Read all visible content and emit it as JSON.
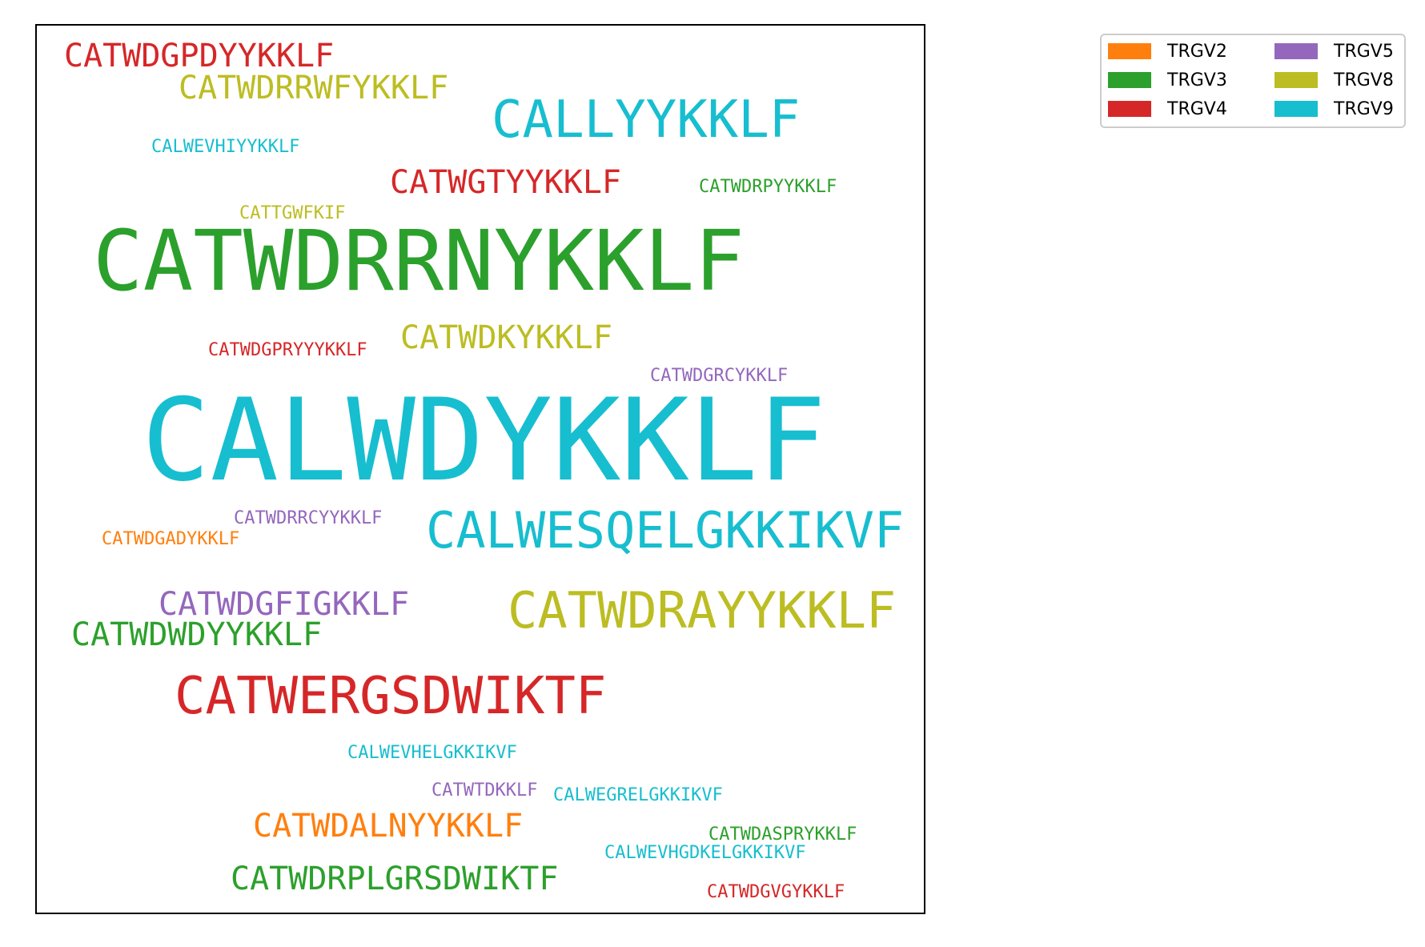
{
  "chart_data": {
    "type": "wordcloud",
    "legend_position": "top-right",
    "legend": [
      {
        "name": "TRGV2",
        "color": "#ff7f0e"
      },
      {
        "name": "TRGV5",
        "color": "#9467bd"
      },
      {
        "name": "TRGV3",
        "color": "#2ca02c"
      },
      {
        "name": "TRGV8",
        "color": "#bcbd22"
      },
      {
        "name": "TRGV4",
        "color": "#d62728"
      },
      {
        "name": "TRGV9",
        "color": "#17becf"
      }
    ],
    "words": [
      {
        "text": "CATWDGPDYYKKLF",
        "group": "TRGV4",
        "color": "#d62728"
      },
      {
        "text": "CATWDRRWFYKKLF",
        "group": "TRGV8",
        "color": "#bcbd22"
      },
      {
        "text": "CALLYYKKLF",
        "group": "TRGV9",
        "color": "#17becf"
      },
      {
        "text": "CALWEVHIYYKKLF",
        "group": "TRGV9",
        "color": "#17becf"
      },
      {
        "text": "CATWGTYYKKLF",
        "group": "TRGV4",
        "color": "#d62728"
      },
      {
        "text": "CATWDRPYYKKLF",
        "group": "TRGV3",
        "color": "#2ca02c"
      },
      {
        "text": "CATTGWFKIF",
        "group": "TRGV8",
        "color": "#bcbd22"
      },
      {
        "text": "CATWDRRNYKKLF",
        "group": "TRGV3",
        "color": "#2ca02c"
      },
      {
        "text": "CATWDKYKKLF",
        "group": "TRGV8",
        "color": "#bcbd22"
      },
      {
        "text": "CATWDGPRYYYKKLF",
        "group": "TRGV4",
        "color": "#d62728"
      },
      {
        "text": "CATWDGRCYKKLF",
        "group": "TRGV5",
        "color": "#9467bd"
      },
      {
        "text": "CALWDYKKLF",
        "group": "TRGV9",
        "color": "#17becf"
      },
      {
        "text": "CATWDRRCYYKKLF",
        "group": "TRGV5",
        "color": "#9467bd"
      },
      {
        "text": "CALWESQELGKKIKVF",
        "group": "TRGV9",
        "color": "#17becf"
      },
      {
        "text": "CATWDGADYKKLF",
        "group": "TRGV2",
        "color": "#ff7f0e"
      },
      {
        "text": "CATWDGFIGKKLF",
        "group": "TRGV5",
        "color": "#9467bd"
      },
      {
        "text": "CATWDRAYYKKLF",
        "group": "TRGV8",
        "color": "#bcbd22"
      },
      {
        "text": "CATWDWDYYKKLF",
        "group": "TRGV3",
        "color": "#2ca02c"
      },
      {
        "text": "CATWERGSDWIKTF",
        "group": "TRGV4",
        "color": "#d62728"
      },
      {
        "text": "CALWEVHELGKKIKVF",
        "group": "TRGV9",
        "color": "#17becf"
      },
      {
        "text": "CATWTDKKLF",
        "group": "TRGV5",
        "color": "#9467bd"
      },
      {
        "text": "CALWEGRELGKKIKVF",
        "group": "TRGV9",
        "color": "#17becf"
      },
      {
        "text": "CATWDALNYYKKLF",
        "group": "TRGV2",
        "color": "#ff7f0e"
      },
      {
        "text": "CATWDASPRYKKLF",
        "group": "TRGV3",
        "color": "#2ca02c"
      },
      {
        "text": "CALWEVHGDKELGKKIKVF",
        "group": "TRGV9",
        "color": "#17becf"
      },
      {
        "text": "CATWDRPLGRSDWIKTF",
        "group": "TRGV3",
        "color": "#2ca02c"
      },
      {
        "text": "CATWDGVGYKKLF",
        "group": "TRGV4",
        "color": "#d62728"
      }
    ]
  }
}
